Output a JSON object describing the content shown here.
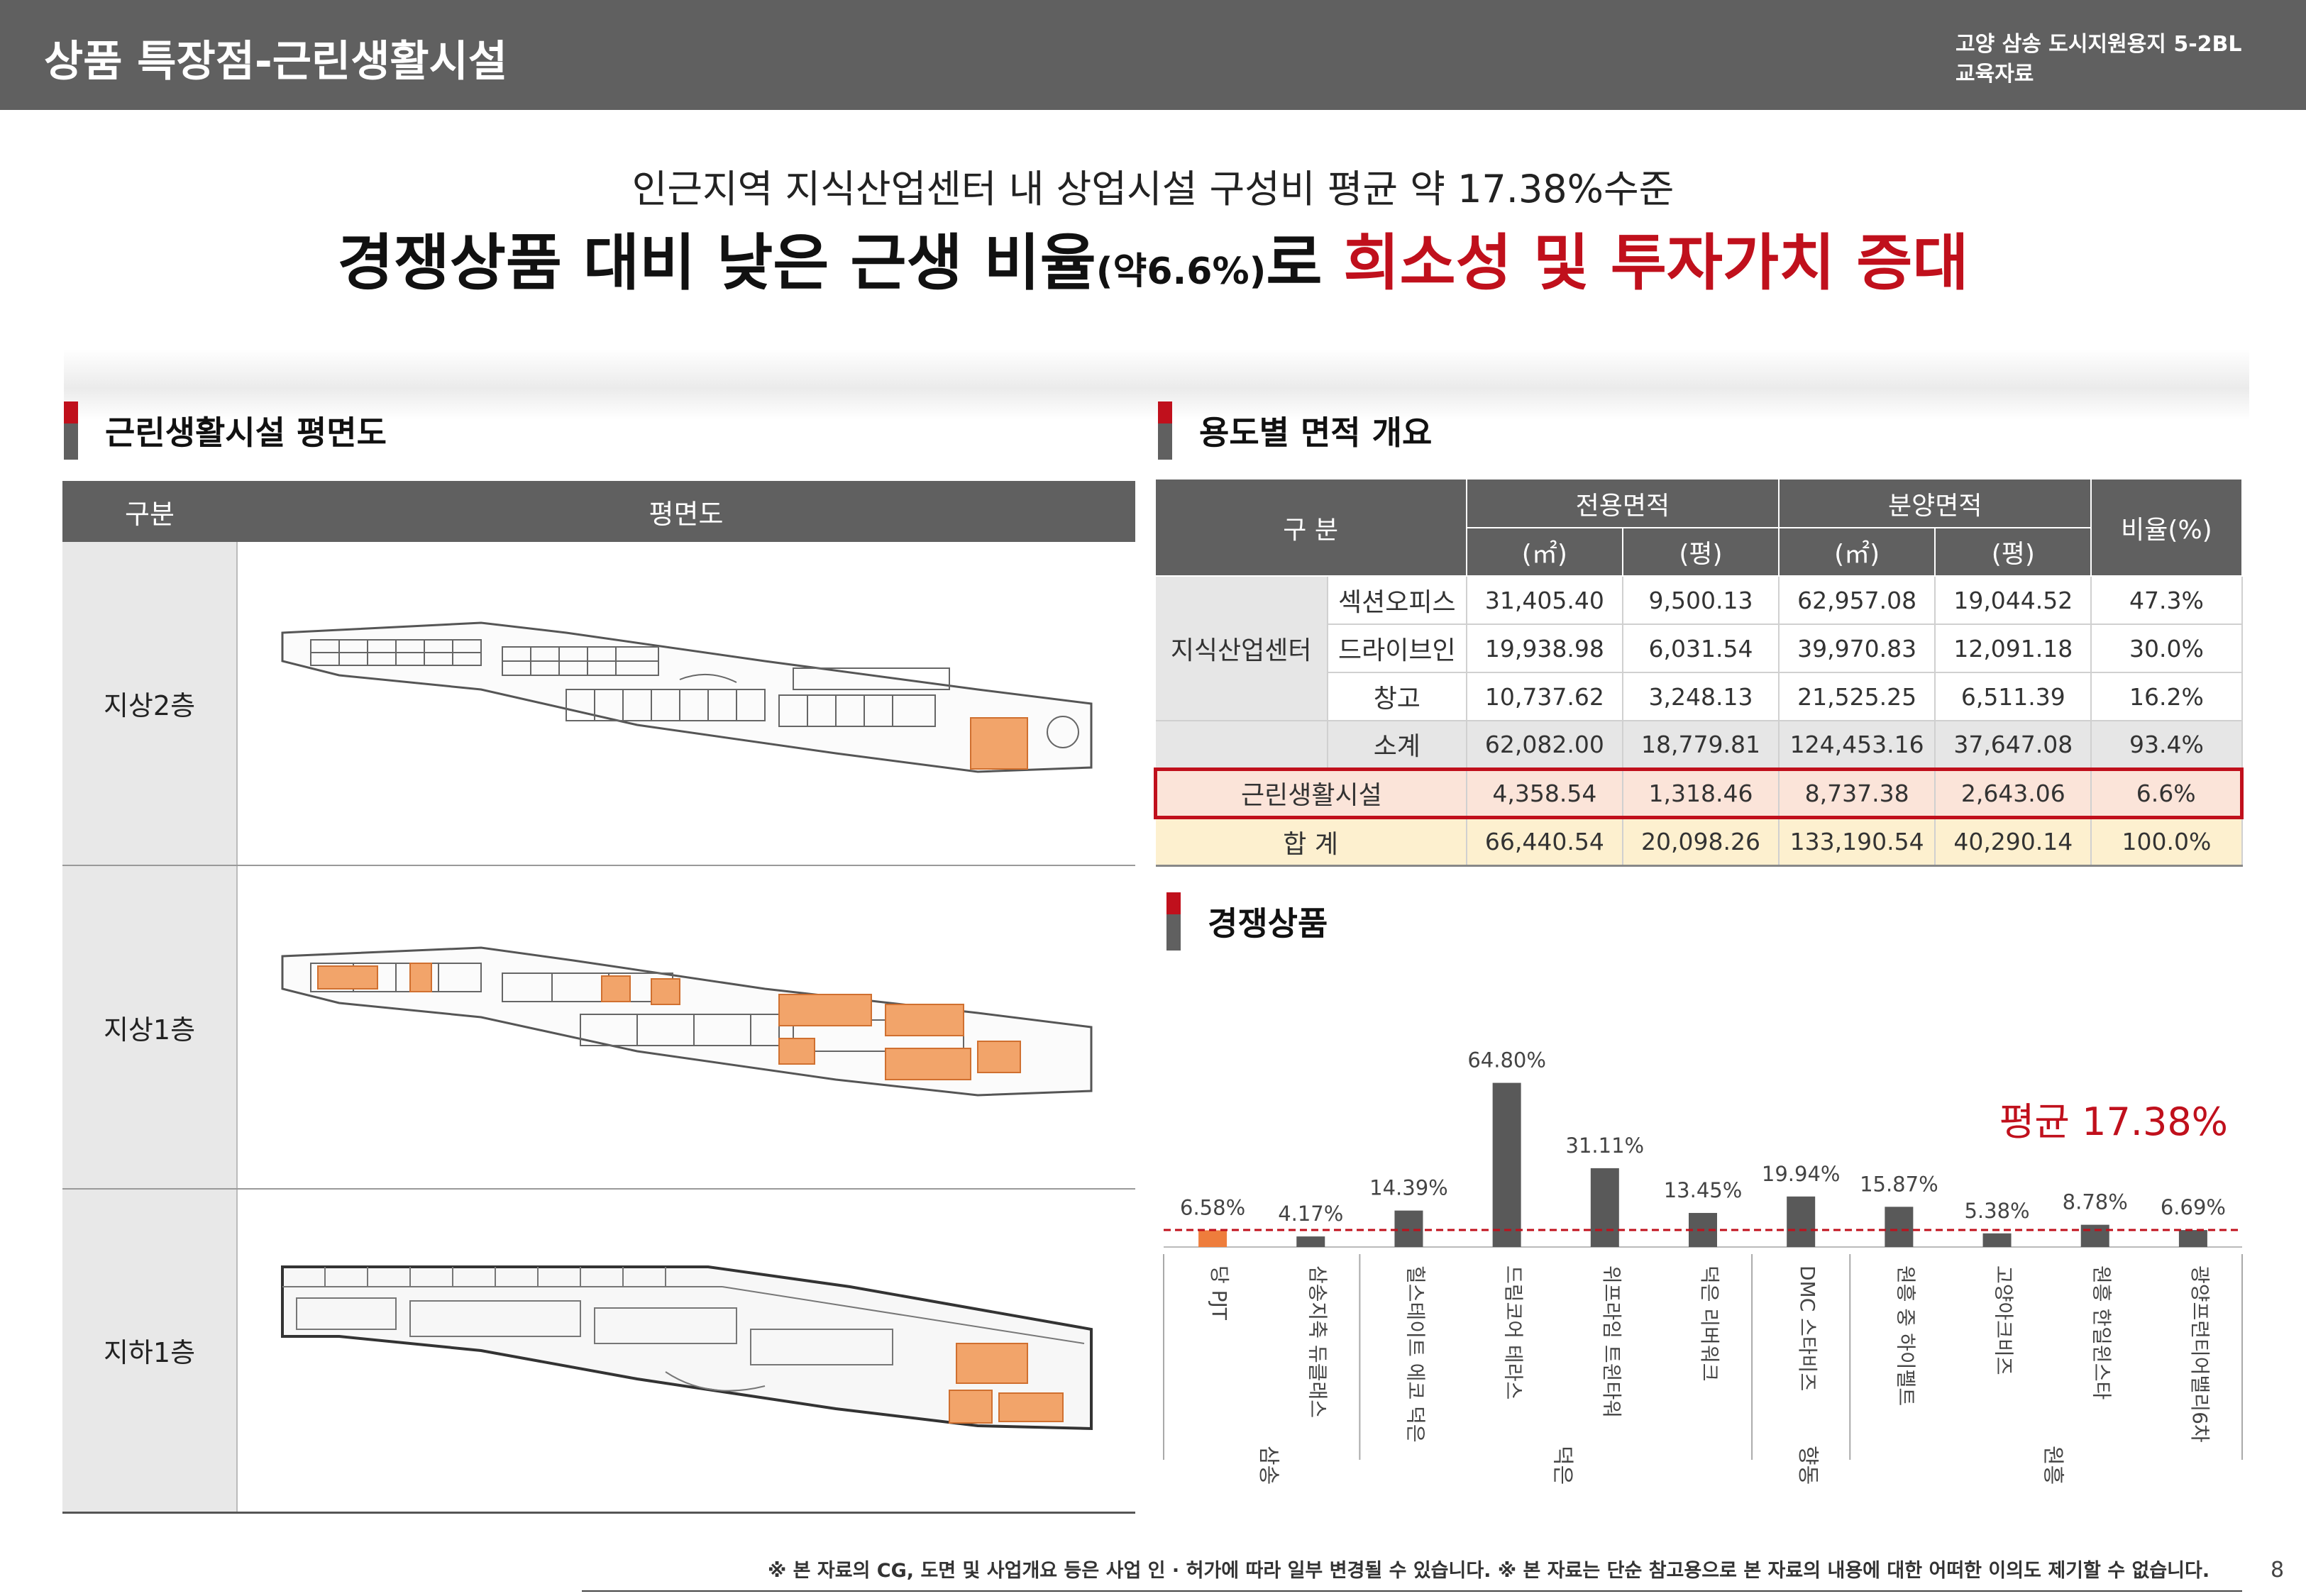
{
  "header": {
    "title": "상품 특장점-근린생활시설",
    "project": "고양 삼송 도시지원용지 5-2BL",
    "doc_type": "교육자료"
  },
  "headline": {
    "line1": "인근지역 지식산업센터 내 상업시설 구성비 평균 약 17.38%수준",
    "line2_a": "경쟁상품 대비 낮은 근생 비율",
    "line2_small": "(약6.6%)",
    "line2_b": "로",
    "line2_red": "희소성 및 투자가치 증대"
  },
  "floor_section": {
    "title": "근린생활시설 평면도",
    "col_label": "구분",
    "col_plan": "평면도",
    "floors": [
      "지상2층",
      "지상1층",
      "지하1층"
    ]
  },
  "area_section": {
    "title": "용도별 면적 개요",
    "head": {
      "category": "구   분",
      "exclusive": "전용면적",
      "sale": "분양면적",
      "ratio": "비율(%)",
      "unit_m2": "(㎡)",
      "unit_py": "(평)"
    },
    "group": "지식산업센터",
    "rows": [
      {
        "name": "섹션오피스",
        "v": [
          "31,405.40",
          "9,500.13",
          "62,957.08",
          "19,044.52",
          "47.3%"
        ]
      },
      {
        "name": "드라이브인",
        "v": [
          "19,938.98",
          "6,031.54",
          "39,970.83",
          "12,091.18",
          "30.0%"
        ]
      },
      {
        "name": "창고",
        "v": [
          "10,737.62",
          "3,248.13",
          "21,525.25",
          "6,511.39",
          "16.2%"
        ]
      },
      {
        "name": "소계",
        "v": [
          "62,082.00",
          "18,779.81",
          "124,453.16",
          "37,647.08",
          "93.4%"
        ]
      }
    ],
    "highlight": {
      "name": "근린생활시설",
      "v": [
        "4,358.54",
        "1,318.46",
        "8,737.38",
        "2,643.06",
        "6.6%"
      ]
    },
    "total": {
      "name": "합 계",
      "v": [
        "66,440.54",
        "20,098.26",
        "133,190.54",
        "40,290.14",
        "100.0%"
      ]
    }
  },
  "competitor_section": {
    "title": "경쟁상품"
  },
  "colors": {
    "header_bg": "#606060",
    "accent_red": "#c0101c",
    "highlight_bar": "#ee7d3c",
    "bar": "#595959",
    "plan_orange": "#f2a46a"
  },
  "chart_data": {
    "type": "bar",
    "categories": [
      "당 PJT",
      "삼송지축 듀클래스",
      "힐스테이트 에코 덕은",
      "드림코어 테라스",
      "위프라임 트윈타워",
      "덕은 리버워크",
      "DMC 스타비즈",
      "원흥 중 하이펠트",
      "고양아크비즈",
      "원흥 한일윈스타",
      "광양프런티어밸리6차"
    ],
    "groups": [
      {
        "name": "삼송",
        "from": 0,
        "to": 1
      },
      {
        "name": "덕은",
        "from": 2,
        "to": 5
      },
      {
        "name": "향동",
        "from": 6,
        "to": 6
      },
      {
        "name": "원흥",
        "from": 7,
        "to": 10
      }
    ],
    "values": [
      6.58,
      4.17,
      14.39,
      64.8,
      31.11,
      13.45,
      19.94,
      15.87,
      5.38,
      8.78,
      6.69
    ],
    "labels": [
      "6.58%",
      "4.17%",
      "14.39%",
      "64.80%",
      "31.11%",
      "13.45%",
      "19.94%",
      "15.87%",
      "5.38%",
      "8.78%",
      "6.69%"
    ],
    "highlight_index": 0,
    "average": 17.38,
    "average_label": "평균 17.38%",
    "ylim": [
      0,
      70
    ]
  },
  "footer": {
    "note": "※ 본 자료의 CG, 도면 및 사업개요 등은 사업 인 · 허가에 따라 일부 변경될 수 있습니다.  ※ 본 자료는 단순 참고용으로 본 자료의 내용에 대한 어떠한 이의도 제기할 수 없습니다.",
    "page": "8"
  }
}
